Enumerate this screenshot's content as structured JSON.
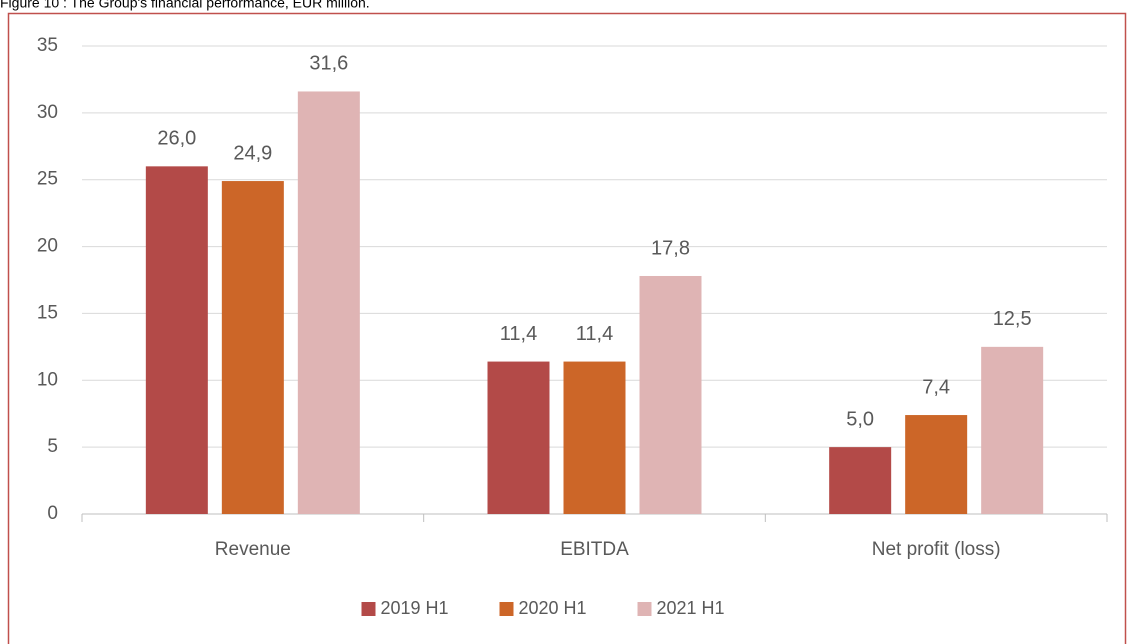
{
  "chart_data": {
    "type": "bar",
    "title": "Figure 10 : The Group's financial performance, EUR million.",
    "categories": [
      "Revenue",
      "EBITDA",
      "Net profit (loss)"
    ],
    "series": [
      {
        "name": "2019 H1",
        "color": "#b34a48",
        "values": [
          26.0,
          11.4,
          5.0
        ],
        "value_labels": [
          "26,0",
          "11,4",
          "5,0"
        ]
      },
      {
        "name": "2020 H1",
        "color": "#cc6628",
        "values": [
          24.9,
          11.4,
          7.4
        ],
        "value_labels": [
          "24,9",
          "11,4",
          "7,4"
        ]
      },
      {
        "name": "2021 H1",
        "color": "#dfb4b4",
        "values": [
          31.6,
          17.8,
          12.5
        ],
        "value_labels": [
          "31,6",
          "17,8",
          "12,5"
        ]
      }
    ],
    "ylim": [
      0,
      35
    ],
    "yticks": [
      0,
      5,
      10,
      15,
      20,
      25,
      30,
      35
    ],
    "grid": true,
    "legend": "bottom"
  }
}
